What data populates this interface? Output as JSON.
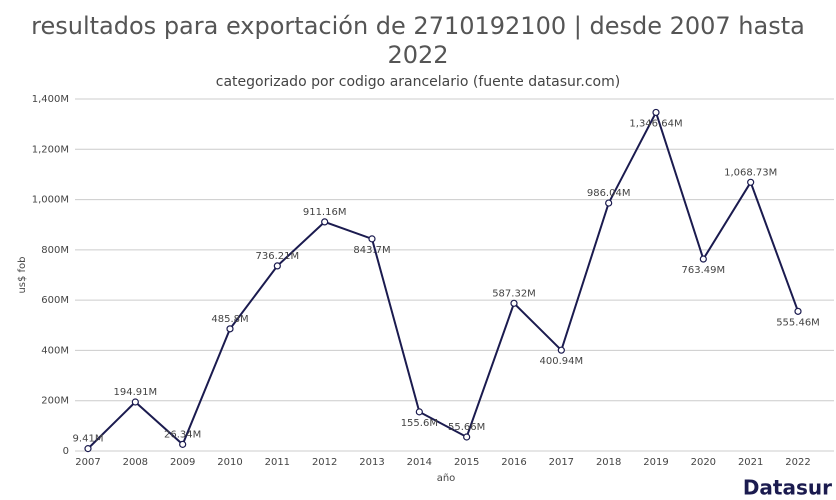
{
  "chart_data": {
    "type": "line",
    "title": "resultados para exportación de 2710192100 | desde 2007 hasta 2022",
    "subtitle": "categorizado por codigo arancelario (fuente datasur.com)",
    "x_label": "año",
    "y_label": "us$ fob",
    "brand": "Datasur",
    "categories": [
      "2007",
      "2008",
      "2009",
      "2010",
      "2011",
      "2012",
      "2013",
      "2014",
      "2015",
      "2016",
      "2017",
      "2018",
      "2019",
      "2020",
      "2021",
      "2022"
    ],
    "series": [
      {
        "name": "exportación",
        "color": "#1b1b4f",
        "values": [
          9.41,
          194.91,
          26.34,
          485.8,
          736.21,
          911.16,
          843.7,
          155.6,
          55.66,
          587.32,
          400.94,
          986.04,
          1346.64,
          763.49,
          1068.73,
          555.46
        ],
        "value_labels": [
          "9.41M",
          "194.91M",
          "26.34M",
          "485.8M",
          "736.21M",
          "911.16M",
          "843.7M",
          "155.6M",
          "55.66M",
          "587.32M",
          "400.94M",
          "986.04M",
          "1,346.64M",
          "763.49M",
          "1,068.73M",
          "555.46M"
        ]
      }
    ],
    "ylim": [
      0,
      1400
    ],
    "yticks": [
      0,
      {
        "value": 200,
        "label": "200M"
      },
      {
        "value": 400,
        "label": "400M"
      },
      {
        "value": 600,
        "label": "600M"
      },
      {
        "value": 800,
        "label": "800M"
      },
      {
        "value": 1000,
        "label": "1,000M"
      },
      {
        "value": 1200,
        "label": "1,200M"
      },
      {
        "value": 1400,
        "label": "1,400M"
      }
    ],
    "grid": true
  }
}
